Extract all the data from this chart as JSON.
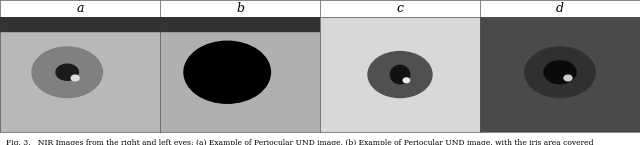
{
  "title_labels": [
    "a",
    "b",
    "c",
    "d"
  ],
  "caption": "Fig. 3.   NIR Images from the right and left eyes: (a) Example of Periocular UND image, (b) Example of Periocular UND image, with the iris area covered",
  "n_panels": 4,
  "panel_bg_colors": [
    "#d0d0d0",
    "#d0d0d0",
    "#e8e8e8",
    "#606060"
  ],
  "header_bg": "#ffffff",
  "border_color": "#555555",
  "figure_width": 6.4,
  "figure_height": 1.45,
  "caption_fontsize": 5.5,
  "label_fontsize": 9,
  "panel_border_thickness": 0.5
}
